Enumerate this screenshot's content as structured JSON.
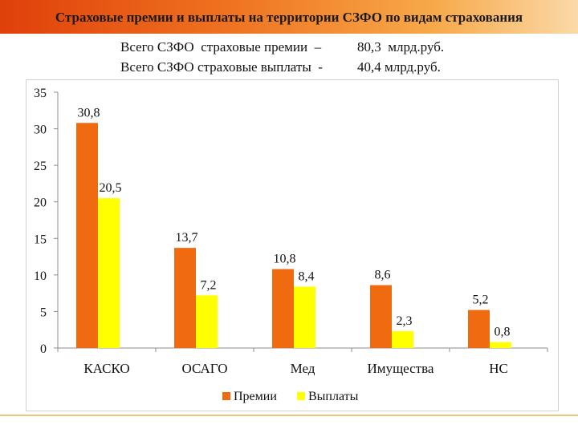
{
  "header": {
    "title": "Страховые премии и выплаты на территории СЗФО по видам страхования"
  },
  "totals": [
    {
      "label": "Всего СЗФО  страховые премии  –",
      "value": "80,3  млрд.руб."
    },
    {
      "label": "Всего СЗФО страховые выплаты  -",
      "value": "40,4 млрд.руб."
    }
  ],
  "colors": {
    "premiums": "#f06a10",
    "payouts": "#ffff00",
    "header_start": "#e0400a",
    "header_end": "#fbd9a8"
  },
  "chart_data": {
    "type": "bar",
    "categories": [
      "КАСКО",
      "ОСАГО",
      "Мед",
      "Имущества",
      "НС"
    ],
    "series": [
      {
        "name": "Премии",
        "values": [
          30.8,
          13.7,
          10.8,
          8.6,
          5.2
        ],
        "labels": [
          "30,8",
          "13,7",
          "10,8",
          "8,6",
          "5,2"
        ]
      },
      {
        "name": "Выплаты",
        "values": [
          20.5,
          7.2,
          8.4,
          2.3,
          0.8
        ],
        "labels": [
          "20,5",
          "7,2",
          "8,4",
          "2,3",
          "0,8"
        ]
      }
    ],
    "ylim": [
      0,
      35
    ],
    "yticks": [
      0,
      5,
      10,
      15,
      20,
      25,
      30,
      35
    ],
    "ytick_labels": [
      "0",
      "5",
      "10",
      "15",
      "20",
      "25",
      "30",
      "35"
    ],
    "grid": false,
    "legend": "bottom",
    "title": "",
    "xlabel": "",
    "ylabel": ""
  }
}
